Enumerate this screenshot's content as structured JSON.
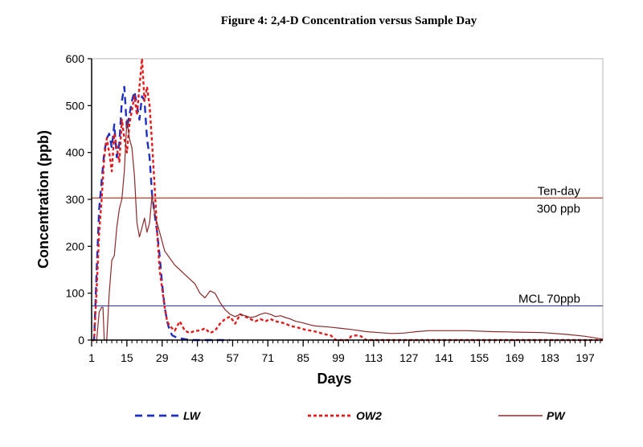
{
  "chart_data": {
    "type": "line",
    "title": "Figure 4: 2,4-D Concentration versus Sample Day",
    "xlabel": "Days",
    "ylabel": "Concentration (ppb)",
    "xlim": [
      1,
      204
    ],
    "ylim": [
      0,
      600
    ],
    "x_ticks": [
      1,
      15,
      29,
      43,
      57,
      71,
      85,
      99,
      113,
      127,
      141,
      155,
      169,
      183,
      197
    ],
    "y_ticks": [
      0,
      100,
      200,
      300,
      400,
      500,
      600
    ],
    "grid": false,
    "legend_position": "bottom",
    "reference_lines": [
      {
        "value": 303,
        "label_line1": "Ten-day",
        "label_line2": "300 ppb",
        "color": "#c0392b"
      },
      {
        "value": 73,
        "label_line1": "MCL 70ppb",
        "label_line2": "",
        "color": "#2f3fbf"
      }
    ],
    "series": [
      {
        "name": "LW",
        "color": "#1f2fbf",
        "style": "dashed",
        "points": [
          [
            1,
            0
          ],
          [
            2,
            0
          ],
          [
            3,
            150
          ],
          [
            4,
            280
          ],
          [
            5,
            340
          ],
          [
            6,
            400
          ],
          [
            7,
            430
          ],
          [
            8,
            440
          ],
          [
            9,
            410
          ],
          [
            10,
            460
          ],
          [
            11,
            390
          ],
          [
            12,
            420
          ],
          [
            13,
            510
          ],
          [
            14,
            540
          ],
          [
            15,
            450
          ],
          [
            16,
            480
          ],
          [
            17,
            510
          ],
          [
            18,
            530
          ],
          [
            19,
            500
          ],
          [
            20,
            470
          ],
          [
            21,
            520
          ],
          [
            22,
            510
          ],
          [
            23,
            430
          ],
          [
            24,
            390
          ],
          [
            25,
            310
          ],
          [
            26,
            270
          ],
          [
            27,
            230
          ],
          [
            28,
            180
          ],
          [
            29,
            120
          ],
          [
            30,
            70
          ],
          [
            31,
            40
          ],
          [
            32,
            20
          ],
          [
            33,
            10
          ],
          [
            35,
            5
          ],
          [
            40,
            0
          ],
          [
            56,
            0
          ]
        ]
      },
      {
        "name": "OW2",
        "color": "#e11b1b",
        "style": "dotted",
        "points": [
          [
            1,
            0
          ],
          [
            2,
            0
          ],
          [
            3,
            110
          ],
          [
            4,
            230
          ],
          [
            5,
            300
          ],
          [
            6,
            390
          ],
          [
            7,
            430
          ],
          [
            8,
            400
          ],
          [
            9,
            360
          ],
          [
            10,
            440
          ],
          [
            11,
            410
          ],
          [
            12,
            380
          ],
          [
            13,
            470
          ],
          [
            14,
            430
          ],
          [
            15,
            400
          ],
          [
            16,
            460
          ],
          [
            17,
            490
          ],
          [
            18,
            520
          ],
          [
            19,
            480
          ],
          [
            20,
            540
          ],
          [
            21,
            600
          ],
          [
            22,
            510
          ],
          [
            23,
            540
          ],
          [
            24,
            500
          ],
          [
            25,
            420
          ],
          [
            26,
            330
          ],
          [
            27,
            230
          ],
          [
            28,
            150
          ],
          [
            29,
            110
          ],
          [
            30,
            70
          ],
          [
            31,
            40
          ],
          [
            32,
            30
          ],
          [
            34,
            20
          ],
          [
            36,
            40
          ],
          [
            38,
            20
          ],
          [
            40,
            15
          ],
          [
            42,
            20
          ],
          [
            44,
            20
          ],
          [
            46,
            25
          ],
          [
            48,
            15
          ],
          [
            50,
            20
          ],
          [
            52,
            35
          ],
          [
            54,
            45
          ],
          [
            56,
            50
          ],
          [
            58,
            35
          ],
          [
            60,
            55
          ],
          [
            62,
            50
          ],
          [
            64,
            45
          ],
          [
            66,
            40
          ],
          [
            68,
            45
          ],
          [
            70,
            40
          ],
          [
            72,
            45
          ],
          [
            74,
            40
          ],
          [
            76,
            38
          ],
          [
            78,
            35
          ],
          [
            80,
            30
          ],
          [
            82,
            28
          ],
          [
            84,
            25
          ],
          [
            86,
            22
          ],
          [
            88,
            20
          ],
          [
            90,
            18
          ],
          [
            92,
            15
          ],
          [
            94,
            12
          ],
          [
            96,
            10
          ],
          [
            98,
            0
          ],
          [
            103,
            0
          ],
          [
            104,
            8
          ],
          [
            106,
            10
          ],
          [
            108,
            8
          ],
          [
            110,
            0
          ],
          [
            204,
            0
          ]
        ]
      },
      {
        "name": "PW",
        "color": "#8b2a2a",
        "style": "solid",
        "points": [
          [
            1,
            0
          ],
          [
            3,
            0
          ],
          [
            4,
            60
          ],
          [
            5,
            70
          ],
          [
            5.5,
            70
          ],
          [
            6,
            0
          ],
          [
            7,
            0
          ],
          [
            8,
            100
          ],
          [
            9,
            170
          ],
          [
            10,
            180
          ],
          [
            11,
            240
          ],
          [
            12,
            280
          ],
          [
            13,
            300
          ],
          [
            14,
            360
          ],
          [
            15,
            470
          ],
          [
            16,
            430
          ],
          [
            17,
            410
          ],
          [
            18,
            350
          ],
          [
            19,
            250
          ],
          [
            20,
            220
          ],
          [
            21,
            240
          ],
          [
            22,
            260
          ],
          [
            23,
            230
          ],
          [
            24,
            250
          ],
          [
            25,
            310
          ],
          [
            26,
            270
          ],
          [
            28,
            230
          ],
          [
            30,
            190
          ],
          [
            32,
            175
          ],
          [
            34,
            160
          ],
          [
            36,
            150
          ],
          [
            38,
            140
          ],
          [
            40,
            130
          ],
          [
            42,
            120
          ],
          [
            44,
            100
          ],
          [
            46,
            90
          ],
          [
            48,
            105
          ],
          [
            50,
            100
          ],
          [
            52,
            80
          ],
          [
            54,
            65
          ],
          [
            56,
            55
          ],
          [
            58,
            50
          ],
          [
            60,
            55
          ],
          [
            62,
            52
          ],
          [
            64,
            48
          ],
          [
            66,
            50
          ],
          [
            68,
            55
          ],
          [
            70,
            58
          ],
          [
            72,
            55
          ],
          [
            74,
            50
          ],
          [
            76,
            52
          ],
          [
            78,
            48
          ],
          [
            80,
            45
          ],
          [
            82,
            40
          ],
          [
            84,
            38
          ],
          [
            86,
            35
          ],
          [
            88,
            32
          ],
          [
            90,
            30
          ],
          [
            95,
            28
          ],
          [
            100,
            25
          ],
          [
            105,
            22
          ],
          [
            110,
            18
          ],
          [
            115,
            16
          ],
          [
            120,
            14
          ],
          [
            125,
            15
          ],
          [
            130,
            18
          ],
          [
            135,
            20
          ],
          [
            140,
            20
          ],
          [
            150,
            20
          ],
          [
            160,
            18
          ],
          [
            170,
            17
          ],
          [
            180,
            16
          ],
          [
            190,
            12
          ],
          [
            197,
            8
          ],
          [
            204,
            2
          ]
        ]
      }
    ]
  }
}
